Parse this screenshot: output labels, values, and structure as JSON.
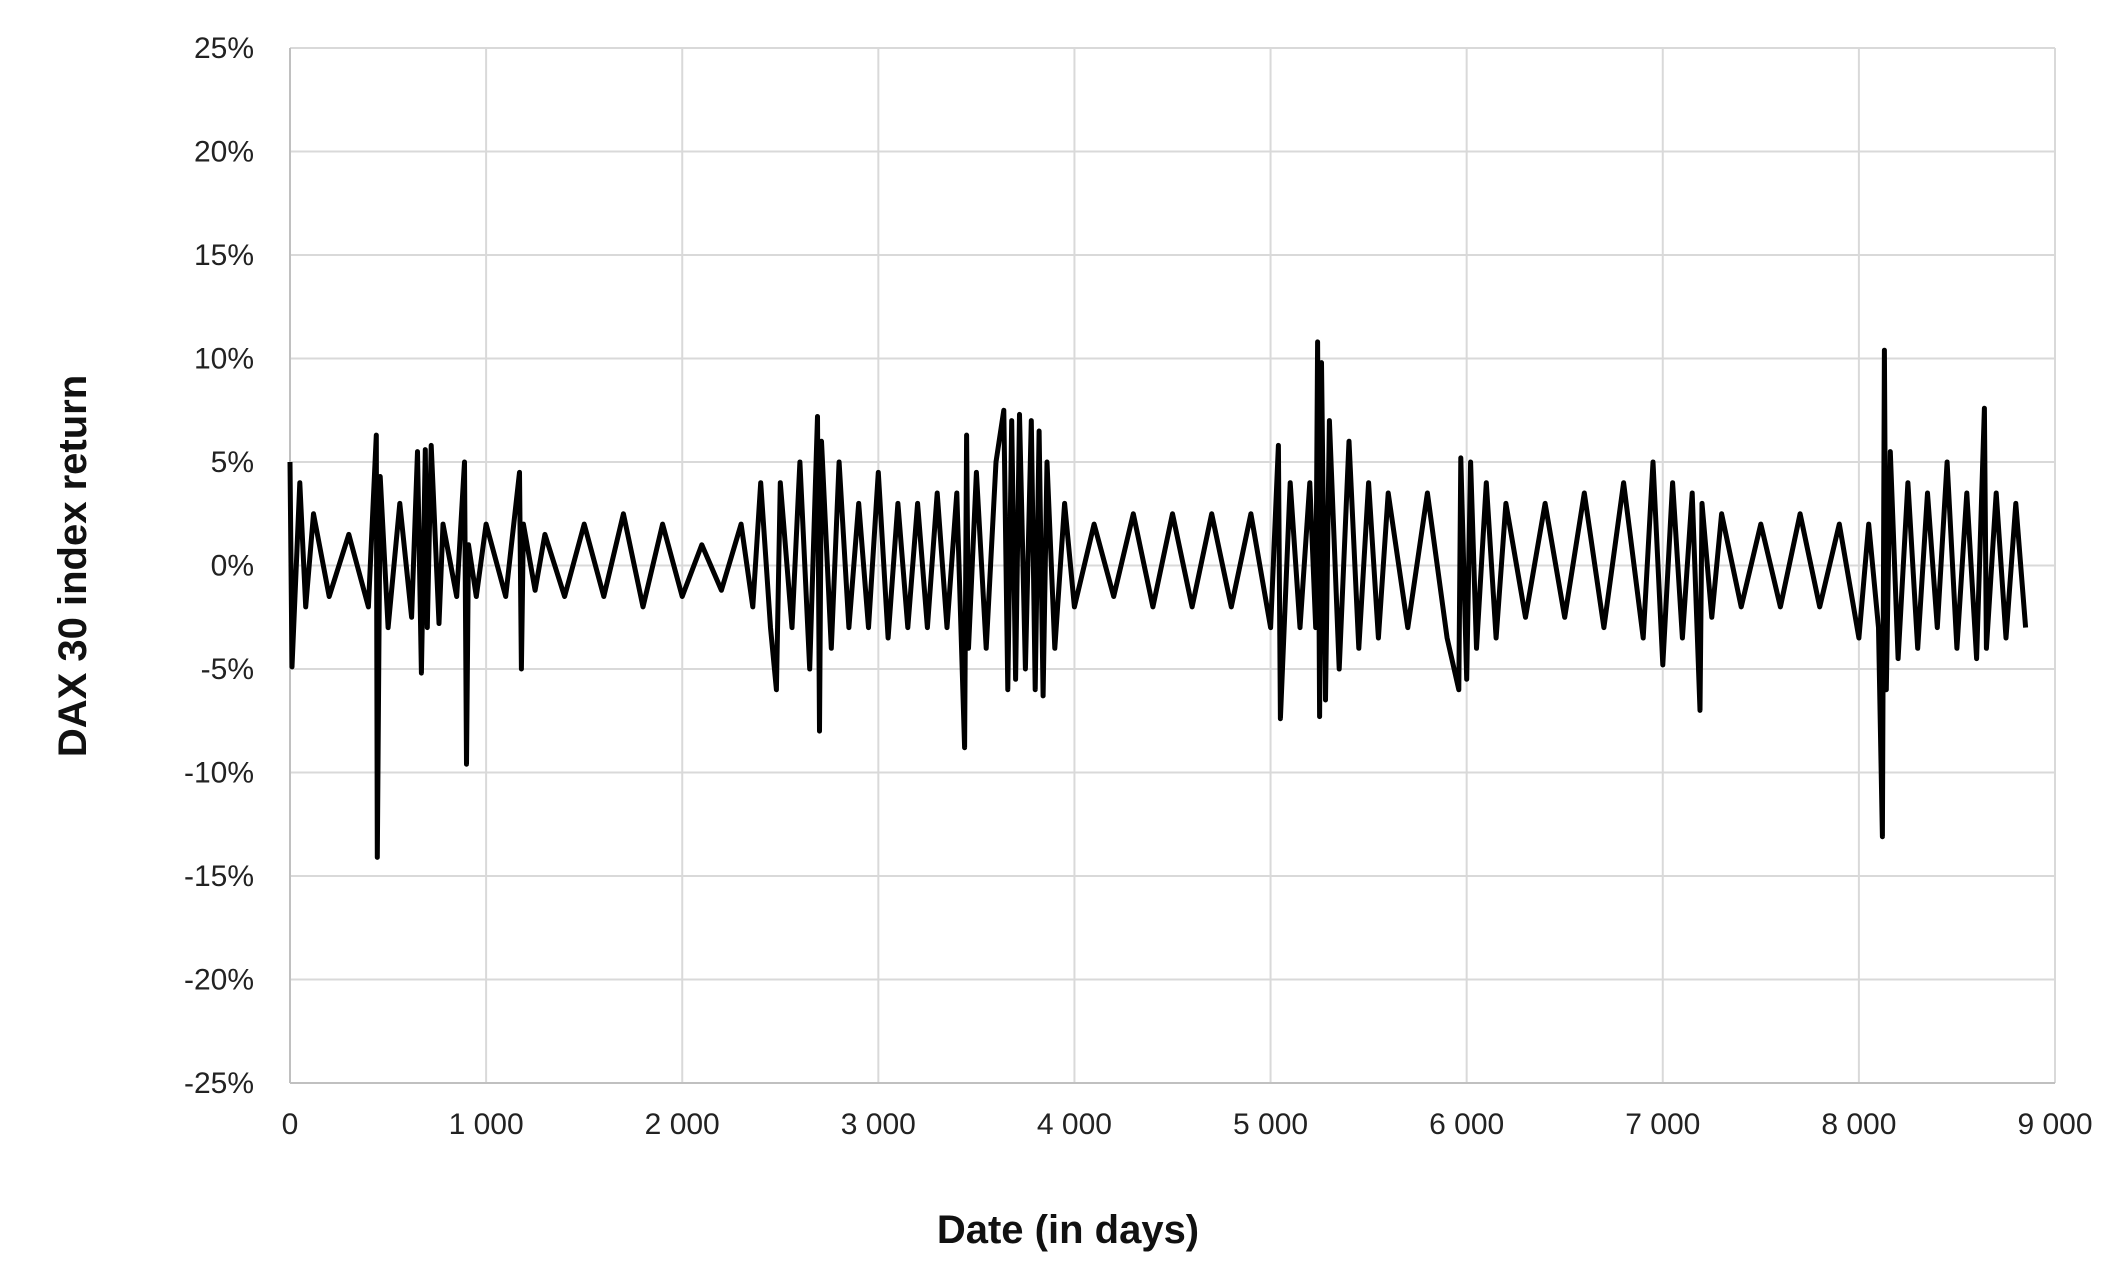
{
  "chart_data": {
    "type": "line",
    "title": "",
    "xlabel": "Date (in days)",
    "ylabel": "DAX 30 index return",
    "xlim": [
      0,
      9000
    ],
    "ylim": [
      -0.25,
      0.25
    ],
    "x_ticks": [
      0,
      1000,
      2000,
      3000,
      4000,
      5000,
      6000,
      7000,
      8000,
      9000
    ],
    "x_tick_labels": [
      "0",
      "1 000",
      "2 000",
      "3 000",
      "4 000",
      "5 000",
      "6 000",
      "7 000",
      "8 000",
      "9 000"
    ],
    "y_ticks": [
      0.25,
      0.2,
      0.15,
      0.1,
      0.05,
      0,
      -0.05,
      -0.1,
      -0.15,
      -0.2,
      -0.25
    ],
    "y_tick_labels": [
      "25%",
      "20%",
      "15%",
      "10%",
      "5%",
      "0%",
      "-5%",
      "-10%",
      "-15%",
      "-20%",
      "-25%"
    ],
    "grid": true,
    "legend": "none",
    "line_color": "#000000",
    "series": [
      {
        "x": [
          0,
          10,
          50,
          80,
          120,
          200,
          300,
          400,
          440,
          445,
          460,
          500,
          560,
          620,
          650,
          670,
          690,
          700,
          720,
          760,
          780,
          850,
          890,
          900,
          910,
          950,
          1000,
          1100,
          1170,
          1180,
          1190,
          1250,
          1300,
          1400,
          1500,
          1600,
          1700,
          1800,
          1900,
          2000,
          2100,
          2200,
          2300,
          2360,
          2400,
          2450,
          2480,
          2500,
          2560,
          2600,
          2650,
          2690,
          2700,
          2710,
          2760,
          2800,
          2850,
          2900,
          2950,
          3000,
          3050,
          3100,
          3150,
          3200,
          3250,
          3300,
          3350,
          3400,
          3440,
          3450,
          3460,
          3500,
          3550,
          3600,
          3640,
          3660,
          3680,
          3700,
          3720,
          3750,
          3780,
          3800,
          3820,
          3840,
          3860,
          3900,
          3950,
          4000,
          4100,
          4200,
          4300,
          4400,
          4500,
          4600,
          4700,
          4800,
          4900,
          5000,
          5040,
          5050,
          5100,
          5150,
          5200,
          5230,
          5240,
          5250,
          5260,
          5280,
          5300,
          5350,
          5400,
          5450,
          5500,
          5550,
          5600,
          5700,
          5800,
          5900,
          5960,
          5970,
          6000,
          6020,
          6050,
          6100,
          6150,
          6200,
          6300,
          6400,
          6500,
          6600,
          6700,
          6800,
          6900,
          6950,
          7000,
          7050,
          7100,
          7150,
          7190,
          7200,
          7250,
          7300,
          7400,
          7500,
          7600,
          7700,
          7800,
          7900,
          8000,
          8050,
          8100,
          8120,
          8130,
          8140,
          8160,
          8200,
          8250,
          8300,
          8350,
          8400,
          8450,
          8500,
          8550,
          8600,
          8640,
          8650,
          8700,
          8750,
          8800,
          8850
        ],
        "y": [
          0.05,
          -0.049,
          0.04,
          -0.02,
          0.025,
          -0.015,
          0.015,
          -0.02,
          0.063,
          -0.141,
          0.043,
          -0.03,
          0.03,
          -0.025,
          0.055,
          -0.052,
          0.056,
          -0.03,
          0.058,
          -0.028,
          0.02,
          -0.015,
          0.05,
          -0.096,
          0.01,
          -0.015,
          0.02,
          -0.015,
          0.045,
          -0.05,
          0.02,
          -0.012,
          0.015,
          -0.015,
          0.02,
          -0.015,
          0.025,
          -0.02,
          0.02,
          -0.015,
          0.01,
          -0.012,
          0.02,
          -0.02,
          0.04,
          -0.03,
          -0.06,
          0.04,
          -0.03,
          0.05,
          -0.05,
          0.072,
          -0.08,
          0.06,
          -0.04,
          0.05,
          -0.03,
          0.03,
          -0.03,
          0.045,
          -0.035,
          0.03,
          -0.03,
          0.03,
          -0.03,
          0.035,
          -0.03,
          0.035,
          -0.088,
          0.063,
          -0.04,
          0.045,
          -0.04,
          0.05,
          0.075,
          -0.06,
          0.07,
          -0.055,
          0.073,
          -0.05,
          0.07,
          -0.06,
          0.065,
          -0.063,
          0.05,
          -0.04,
          0.03,
          -0.02,
          0.02,
          -0.015,
          0.025,
          -0.02,
          0.025,
          -0.02,
          0.025,
          -0.02,
          0.025,
          -0.03,
          0.058,
          -0.074,
          0.04,
          -0.03,
          0.04,
          -0.03,
          0.108,
          -0.073,
          0.098,
          -0.065,
          0.07,
          -0.05,
          0.06,
          -0.04,
          0.04,
          -0.035,
          0.035,
          -0.03,
          0.035,
          -0.035,
          -0.06,
          0.052,
          -0.055,
          0.05,
          -0.04,
          0.04,
          -0.035,
          0.03,
          -0.025,
          0.03,
          -0.025,
          0.035,
          -0.03,
          0.04,
          -0.035,
          0.05,
          -0.048,
          0.04,
          -0.035,
          0.035,
          -0.07,
          0.03,
          -0.025,
          0.025,
          -0.02,
          0.02,
          -0.02,
          0.025,
          -0.02,
          0.02,
          -0.035,
          0.02,
          -0.03,
          -0.131,
          0.104,
          -0.06,
          0.055,
          -0.045,
          0.04,
          -0.04,
          0.035,
          -0.03,
          0.05,
          -0.04,
          0.035,
          -0.045,
          0.076,
          -0.04,
          0.035,
          -0.035,
          0.03,
          -0.03
        ]
      }
    ]
  }
}
